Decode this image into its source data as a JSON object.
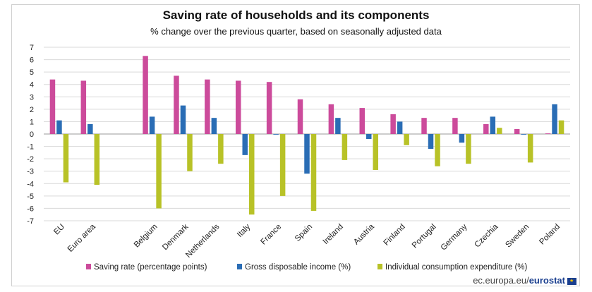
{
  "chart_data": {
    "type": "bar",
    "title": "Saving rate of households and its components",
    "subtitle": "% change over the previous quarter, based on seasonally adjusted data",
    "categories": [
      "EU",
      "Euro area",
      "",
      "Belgium",
      "Denmark",
      "Netherlands",
      "Italy",
      "France",
      "Spain",
      "Ireland",
      "Austria",
      "Finland",
      "Portugal",
      "Germany",
      "Czechia",
      "Sweden",
      "Poland"
    ],
    "series": [
      {
        "name": "Saving rate (percentage points)",
        "color": "#cc4b9b",
        "values": [
          4.4,
          4.3,
          null,
          6.3,
          4.7,
          4.4,
          4.3,
          4.2,
          2.8,
          2.4,
          2.1,
          1.6,
          1.3,
          1.3,
          0.8,
          0.4,
          0.05
        ]
      },
      {
        "name": "Gross disposable income (%)",
        "color": "#2a6db5",
        "values": [
          1.1,
          0.8,
          null,
          1.4,
          2.3,
          1.3,
          -1.7,
          -0.05,
          -3.2,
          1.3,
          -0.4,
          1.0,
          -1.2,
          -0.7,
          1.4,
          -0.05,
          2.4
        ]
      },
      {
        "name": "Individual consumption expenditure (%)",
        "color": "#b8c227",
        "values": [
          -3.9,
          -4.1,
          null,
          -6.0,
          -3.0,
          -2.4,
          -6.5,
          -5.0,
          -6.2,
          -2.1,
          -2.9,
          -0.9,
          -2.6,
          -2.4,
          0.5,
          -2.3,
          1.1
        ]
      }
    ],
    "ylim": [
      -7,
      7
    ],
    "yticks": [
      -7,
      -6,
      -5,
      -4,
      -3,
      -2,
      -1,
      0,
      1,
      2,
      3,
      4,
      5,
      6,
      7
    ],
    "grid": true,
    "legend": "bottom"
  },
  "source": {
    "prefix": "ec.europa.eu/",
    "brand": "eurostat"
  }
}
